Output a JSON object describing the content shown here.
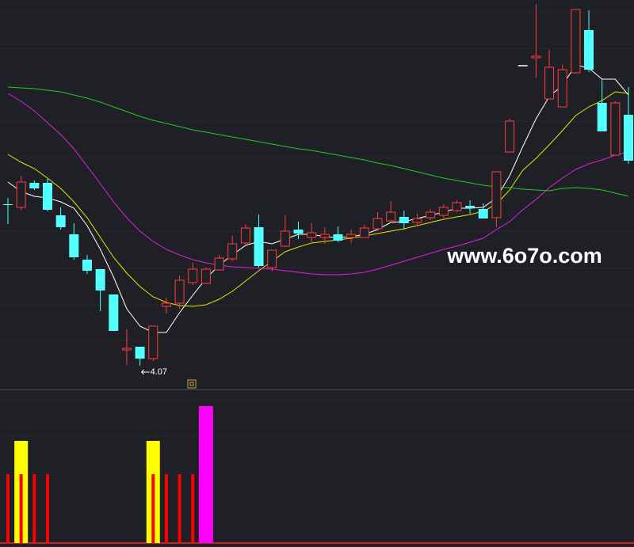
{
  "chart_data": [
    {
      "type": "candlestick",
      "ylim": [
        3.925,
        6.38
      ],
      "grid": true,
      "up_color": "#ff3c3c",
      "down_color": "#54ffff",
      "doji_color": "#ffffff",
      "open": [
        5.09,
        5.07,
        5.225,
        5.225,
        5.02,
        4.9,
        4.74,
        4.68,
        4.52,
        4.17,
        4.19,
        4.115,
        4.445,
        4.465,
        4.595,
        4.59,
        4.675,
        4.745,
        4.845,
        4.945,
        4.69,
        4.825,
        4.93,
        4.88,
        4.88,
        4.9,
        4.88,
        4.88,
        4.935,
        4.985,
        5.01,
        4.975,
        5.005,
        5.02,
        5.05,
        5.08,
        5.06,
        5.005,
        5.42,
        5.965,
        6.015,
        5.755,
        5.705,
        5.92,
        6.19,
        5.73,
        5.4,
        5.655
      ],
      "high": [
        5.13,
        5.27,
        5.24,
        5.25,
        5.07,
        4.97,
        4.77,
        4.68,
        4.52,
        4.3,
        4.19,
        4.32,
        4.5,
        4.64,
        4.72,
        4.69,
        4.77,
        4.89,
        4.965,
        5.025,
        4.8,
        5.02,
        4.98,
        4.97,
        4.945,
        4.95,
        4.93,
        4.96,
        5.04,
        5.11,
        5.05,
        5.03,
        5.06,
        5.09,
        5.115,
        5.115,
        5.095,
        5.295,
        5.63,
        5.965,
        6.355,
        6.065,
        5.97,
        6.32,
        6.315,
        5.88,
        5.74,
        5.83
      ],
      "low": [
        4.965,
        5.055,
        5.18,
        5.045,
        4.93,
        4.74,
        4.65,
        4.415,
        4.29,
        4.075,
        4.07,
        4.1,
        4.4,
        4.43,
        4.58,
        4.59,
        4.67,
        4.73,
        4.83,
        4.69,
        4.665,
        4.82,
        4.87,
        4.85,
        4.84,
        4.85,
        4.845,
        4.88,
        4.93,
        4.97,
        4.93,
        4.95,
        4.99,
        5.005,
        5.04,
        5.03,
        5.0,
        4.945,
        5.415,
        5.965,
        5.89,
        5.755,
        5.705,
        5.915,
        5.925,
        5.55,
        5.4,
        5.345
      ],
      "close": [
        5.085,
        5.23,
        5.19,
        5.055,
        4.945,
        4.755,
        4.67,
        4.545,
        4.29,
        4.18,
        4.115,
        4.32,
        4.465,
        4.61,
        4.68,
        4.68,
        4.75,
        4.84,
        4.94,
        4.7,
        4.8,
        4.92,
        4.905,
        4.91,
        4.9,
        4.86,
        4.9,
        4.94,
        5.0,
        5.04,
        4.97,
        5.0,
        5.04,
        5.07,
        5.1,
        5.065,
        5.0,
        5.295,
        5.615,
        5.965,
        6.025,
        5.955,
        5.94,
        6.32,
        5.94,
        5.55,
        5.73,
        5.365
      ],
      "series": [
        {
          "color": "#ffffff",
          "values": [
            5.23,
            5.17,
            5.14,
            5.13,
            5.105,
            5.065,
            4.955,
            4.805,
            4.63,
            4.43,
            4.32,
            4.28,
            4.28,
            4.405,
            4.515,
            4.62,
            4.705,
            4.77,
            4.83,
            4.855,
            4.84,
            4.87,
            4.9,
            4.9,
            4.885,
            4.88,
            4.885,
            4.9,
            4.93,
            4.975,
            4.98,
            5.0,
            5.02,
            5.04,
            5.065,
            5.065,
            5.07,
            5.13,
            5.27,
            5.455,
            5.63,
            5.77,
            5.84,
            5.97,
            5.95,
            5.88,
            5.88,
            5.78
          ]
        },
        {
          "color": "#e6e600",
          "values": [
            5.405,
            5.355,
            5.315,
            5.255,
            5.19,
            5.105,
            5.005,
            4.88,
            4.755,
            4.655,
            4.57,
            4.505,
            4.47,
            4.45,
            4.445,
            4.455,
            4.49,
            4.54,
            4.605,
            4.67,
            4.73,
            4.79,
            4.82,
            4.845,
            4.855,
            4.865,
            4.875,
            4.89,
            4.905,
            4.92,
            4.935,
            4.955,
            4.975,
            4.995,
            5.01,
            5.025,
            5.045,
            5.09,
            5.18,
            5.305,
            5.38,
            5.465,
            5.555,
            5.65,
            5.705,
            5.745,
            5.8,
            5.79
          ]
        },
        {
          "color": "#e020e0",
          "values": [
            5.79,
            5.74,
            5.68,
            5.605,
            5.53,
            5.44,
            5.33,
            5.22,
            5.105,
            5.005,
            4.92,
            4.855,
            4.805,
            4.77,
            4.74,
            4.72,
            4.705,
            4.695,
            4.69,
            4.685,
            4.68,
            4.67,
            4.66,
            4.65,
            4.645,
            4.645,
            4.65,
            4.66,
            4.68,
            4.705,
            4.73,
            4.755,
            4.78,
            4.805,
            4.825,
            4.85,
            4.875,
            4.93,
            4.98,
            5.055,
            5.12,
            5.195,
            5.255,
            5.31,
            5.345,
            5.37,
            5.4,
            5.42
          ]
        },
        {
          "color": "#22cc22",
          "values": [
            5.83,
            5.825,
            5.82,
            5.81,
            5.8,
            5.78,
            5.76,
            5.735,
            5.705,
            5.675,
            5.645,
            5.62,
            5.6,
            5.58,
            5.56,
            5.545,
            5.53,
            5.515,
            5.5,
            5.485,
            5.47,
            5.455,
            5.44,
            5.43,
            5.415,
            5.4,
            5.385,
            5.37,
            5.35,
            5.335,
            5.315,
            5.295,
            5.275,
            5.255,
            5.24,
            5.225,
            5.21,
            5.2,
            5.195,
            5.185,
            5.18,
            5.175,
            5.19,
            5.195,
            5.19,
            5.18,
            5.16,
            5.14
          ]
        }
      ],
      "watermark": "www.6o7o.com"
    },
    {
      "type": "bar",
      "ylim": [
        0,
        190
      ],
      "grid": true,
      "series": [
        {
          "color": "#ffff00",
          "values": [
            null,
            129,
            null,
            null,
            null,
            null,
            null,
            null,
            null,
            null,
            null,
            129,
            null,
            null,
            null,
            null,
            null,
            null,
            null,
            null,
            null,
            null,
            null,
            null,
            null,
            null,
            null,
            null,
            null,
            null,
            null,
            null,
            null,
            null,
            null,
            null,
            null,
            null,
            null,
            null,
            null,
            null,
            null,
            null,
            null,
            null,
            null,
            null
          ]
        },
        {
          "color": "#ff00ff",
          "values": [
            null,
            null,
            null,
            null,
            null,
            null,
            null,
            null,
            null,
            null,
            null,
            null,
            null,
            null,
            null,
            173,
            null,
            null,
            null,
            null,
            null,
            null,
            null,
            null,
            null,
            null,
            null,
            null,
            null,
            null,
            null,
            null,
            null,
            null,
            null,
            null,
            null,
            null,
            null,
            null,
            null,
            null,
            null,
            null,
            null,
            null,
            null,
            null
          ]
        },
        {
          "color": "#ff0000",
          "values": [
            87,
            87,
            87,
            87,
            null,
            null,
            null,
            null,
            null,
            null,
            null,
            87,
            87,
            87,
            87,
            null,
            null,
            null,
            null,
            null,
            null,
            null,
            null,
            null,
            null,
            null,
            null,
            null,
            null,
            null,
            null,
            null,
            null,
            null,
            null,
            null,
            null,
            null,
            null,
            null,
            null,
            null,
            null,
            null,
            null,
            null,
            null,
            null
          ]
        }
      ]
    }
  ]
}
